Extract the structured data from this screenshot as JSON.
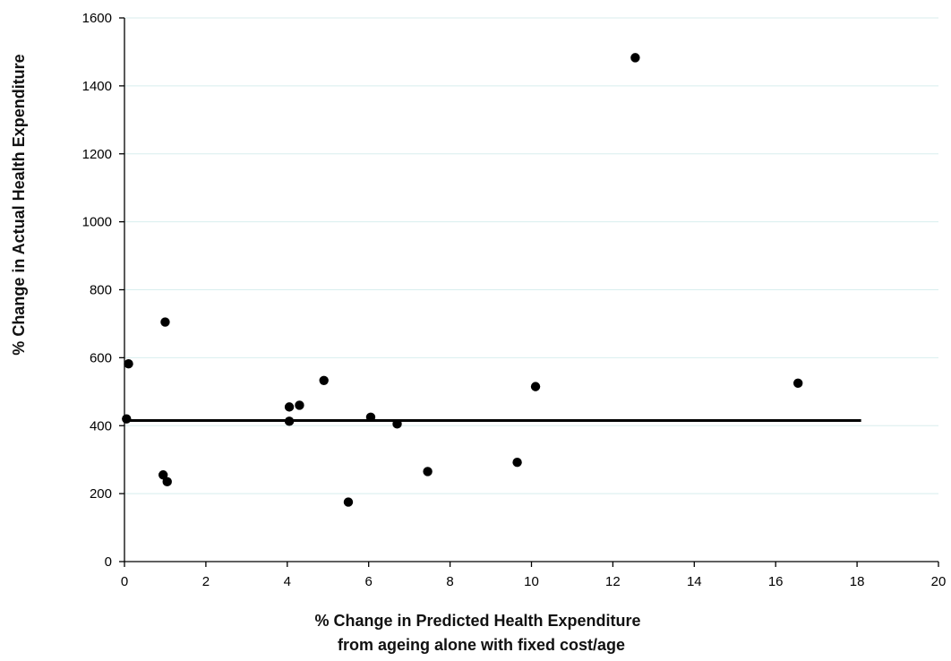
{
  "chart_data": {
    "type": "scatter",
    "title": "",
    "xlabel_lines": [
      "% Change in Predicted Health Expenditure",
      "from ageing alone with fixed cost/age"
    ],
    "ylabel": "% Change in Actual Health Expenditure",
    "xlim": [
      0,
      20
    ],
    "ylim": [
      0,
      1600
    ],
    "xticks": [
      0,
      2,
      4,
      6,
      8,
      10,
      12,
      14,
      16,
      18,
      20
    ],
    "yticks": [
      0,
      200,
      400,
      600,
      800,
      1000,
      1200,
      1400,
      1600
    ],
    "grid": "horizontal",
    "legend": "none",
    "points": [
      {
        "x": 0.1,
        "y": 582
      },
      {
        "x": 0.05,
        "y": 420
      },
      {
        "x": 1.0,
        "y": 705
      },
      {
        "x": 0.95,
        "y": 255
      },
      {
        "x": 1.05,
        "y": 235
      },
      {
        "x": 4.05,
        "y": 455
      },
      {
        "x": 4.3,
        "y": 460
      },
      {
        "x": 4.05,
        "y": 413
      },
      {
        "x": 4.9,
        "y": 533
      },
      {
        "x": 5.5,
        "y": 175
      },
      {
        "x": 6.05,
        "y": 425
      },
      {
        "x": 6.7,
        "y": 405
      },
      {
        "x": 7.45,
        "y": 265
      },
      {
        "x": 9.65,
        "y": 292
      },
      {
        "x": 10.1,
        "y": 515
      },
      {
        "x": 12.55,
        "y": 1483
      },
      {
        "x": 16.55,
        "y": 525
      }
    ],
    "reference_line": {
      "y": 415,
      "x_start": 0,
      "x_end": 18.1
    },
    "colors": {
      "points": "#000000",
      "line": "#000000",
      "grid": "#d8eeee",
      "axis": "#000000"
    }
  }
}
